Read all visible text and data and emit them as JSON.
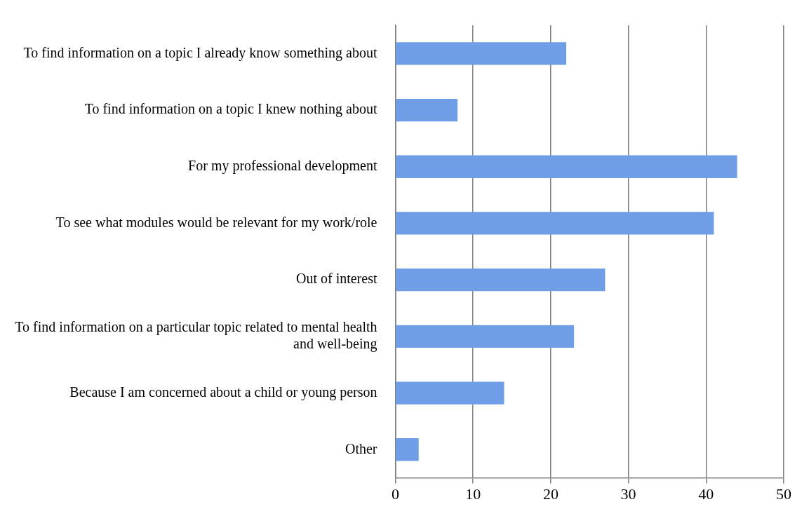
{
  "chart_data": {
    "type": "bar",
    "orientation": "horizontal",
    "categories": [
      "To find information on a topic I already know something about",
      "To find information on a topic I knew nothing about",
      "For my professional development",
      "To see what modules would be relevant for my work/role",
      "Out of interest",
      "To find information on a particular topic related to mental health and well-being",
      "Because I am concerned about a child or young person",
      "Other"
    ],
    "values": [
      22,
      8,
      44,
      41,
      27,
      23,
      14,
      3
    ],
    "color": "#6f9de6",
    "xlim": [
      0,
      50
    ],
    "xticks": [
      0,
      10,
      20,
      30,
      40,
      50
    ],
    "grid": "x",
    "legend": false
  }
}
